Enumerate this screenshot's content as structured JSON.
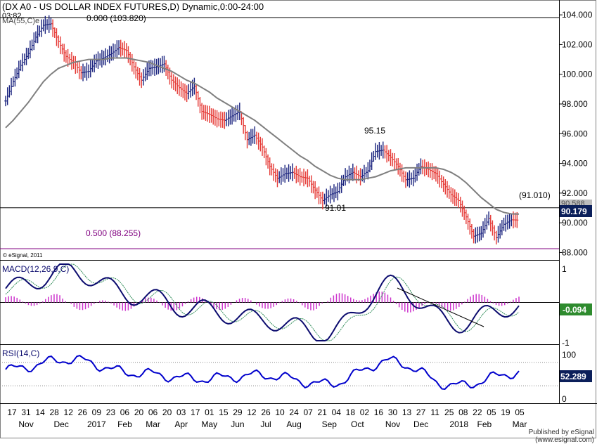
{
  "colors": {
    "up_bar": "#1a237e",
    "down_bar": "#e53935",
    "ma_line": "#7f7f7f",
    "level_line": "#000000",
    "fib_line": "#800080",
    "macd_line": "#0b0b6e",
    "signal_line": "#2e8b57",
    "hist": "#cc33cc",
    "rsi_line": "#0000cc",
    "grid_dot": "#888888",
    "price_box": "#0b1f5a",
    "macd_box": "#2e8b2e",
    "rsi_box": "#0b1f5a"
  },
  "header": {
    "title": "(DX A0 - US DOLLAR INDEX FUTURES,D) Dynamic,0:00-24:00",
    "subtitle_value": "03:82",
    "ma_label": "MA(55,C)e"
  },
  "annotations": {
    "high_label": "0.000 (103.820)",
    "fib_label": "0.500 (88.255)",
    "peak_label": "95.15",
    "low_label": "91.01",
    "level_right_label": "(91.010)",
    "ma_value_label": "90.588",
    "copyright": "© eSignal, 2011"
  },
  "price_axis": {
    "ticks": [
      "104.000",
      "102.000",
      "100.000",
      "98.000",
      "96.000",
      "94.000",
      "92.000",
      "90.000",
      "88.000"
    ],
    "last_price": "90.179"
  },
  "macd_panel": {
    "label": "MACD(12,26,9,C)",
    "ticks": [
      "1",
      "-1"
    ],
    "last_value": "-0.094"
  },
  "rsi_panel": {
    "label": "RSI(14,C)",
    "ticks": [
      "100",
      "52.289",
      "0"
    ],
    "last_value": "52.289"
  },
  "x_axis": {
    "day_ticks": [
      "17",
      "31",
      "14",
      "28",
      "12",
      "26",
      "09",
      "23",
      "06",
      "20",
      "06",
      "20",
      "03",
      "17",
      "01",
      "15",
      "29",
      "12",
      "26",
      "10",
      "24",
      "07",
      "21",
      "04",
      "18",
      "02",
      "16",
      "30",
      "13",
      "27",
      "11",
      "25",
      "08",
      "22",
      "05",
      "19",
      "05"
    ],
    "month_labels": [
      "Nov",
      "Dec",
      "2017",
      "Feb",
      "Mar",
      "Apr",
      "May",
      "Jun",
      "Jul",
      "Aug",
      "Sep",
      "Oct",
      "Nov",
      "Dec",
      "2018",
      "Feb",
      "Mar"
    ]
  },
  "footer": {
    "published": "Published by eSignal (www.esignal.com)"
  },
  "chart_data": [
    {
      "type": "line",
      "title": "(DX A0 - US DOLLAR INDEX FUTURES,D) Dynamic,0:00-24:00",
      "x": [
        "2016-11-17",
        "2016-11-24",
        "2016-12-01",
        "2016-12-08",
        "2016-12-15",
        "2016-12-22",
        "2016-12-29",
        "2017-01-05",
        "2017-01-12",
        "2017-01-19",
        "2017-01-26",
        "2017-02-02",
        "2017-02-09",
        "2017-02-16",
        "2017-02-23",
        "2017-03-02",
        "2017-03-09",
        "2017-03-16",
        "2017-03-23",
        "2017-03-30",
        "2017-04-06",
        "2017-04-13",
        "2017-04-20",
        "2017-04-27",
        "2017-05-04",
        "2017-05-11",
        "2017-05-18",
        "2017-05-25",
        "2017-06-01",
        "2017-06-08",
        "2017-06-15",
        "2017-06-22",
        "2017-06-29",
        "2017-07-06",
        "2017-07-13",
        "2017-07-20",
        "2017-07-27",
        "2017-08-03",
        "2017-08-10",
        "2017-08-17",
        "2017-08-24",
        "2017-08-31",
        "2017-09-07",
        "2017-09-14",
        "2017-09-21",
        "2017-09-28",
        "2017-10-05",
        "2017-10-12",
        "2017-10-19",
        "2017-10-26",
        "2017-11-02",
        "2017-11-09",
        "2017-11-16",
        "2017-11-23",
        "2017-11-30",
        "2017-12-07",
        "2017-12-14",
        "2017-12-21",
        "2017-12-28",
        "2018-01-04",
        "2018-01-11",
        "2018-01-18",
        "2018-01-25",
        "2018-02-01",
        "2018-02-08",
        "2018-02-15",
        "2018-02-22",
        "2018-03-01",
        "2018-03-05"
      ],
      "series": [
        {
          "name": "DX A0",
          "values": [
            98.2,
            99.5,
            100.6,
            101.4,
            102.5,
            103.3,
            103.4,
            102.2,
            101.2,
            100.8,
            100.1,
            100.2,
            100.9,
            101.1,
            101.4,
            101.8,
            101.6,
            100.5,
            99.6,
            100.4,
            100.5,
            100.7,
            99.6,
            99.1,
            98.7,
            99.2,
            97.5,
            97.3,
            97.0,
            96.9,
            97.2,
            97.5,
            95.6,
            95.9,
            95.1,
            93.8,
            93.0,
            93.3,
            93.4,
            93.1,
            93.0,
            92.2,
            91.5,
            91.9,
            92.1,
            93.1,
            93.4,
            93.1,
            93.5,
            94.8,
            94.9,
            94.4,
            93.8,
            92.9,
            93.0,
            93.8,
            93.6,
            93.3,
            92.6,
            91.9,
            91.5,
            90.4,
            89.1,
            89.3,
            90.3,
            89.0,
            89.9,
            90.2,
            90.18
          ]
        },
        {
          "name": "MA(55,C)e",
          "values": [
            96.4,
            96.9,
            97.5,
            98.1,
            98.8,
            99.5,
            100.0,
            100.4,
            100.6,
            100.8,
            100.9,
            101.0,
            101.0,
            101.0,
            101.1,
            101.1,
            101.1,
            101.0,
            100.9,
            100.8,
            100.6,
            100.4,
            100.2,
            99.9,
            99.6,
            99.4,
            99.1,
            98.8,
            98.4,
            98.1,
            97.8,
            97.5,
            97.2,
            96.9,
            96.5,
            96.1,
            95.7,
            95.3,
            94.9,
            94.5,
            94.2,
            93.8,
            93.5,
            93.2,
            93.0,
            92.9,
            92.9,
            92.9,
            93.0,
            93.1,
            93.3,
            93.5,
            93.6,
            93.7,
            93.7,
            93.7,
            93.7,
            93.7,
            93.6,
            93.4,
            93.1,
            92.7,
            92.2,
            91.7,
            91.3,
            90.9,
            90.7,
            90.6,
            90.59
          ]
        }
      ],
      "ylim": [
        87.5,
        105.0
      ],
      "horizontal_levels": [
        103.82,
        91.01,
        88.255
      ],
      "grid": false,
      "legend": "top-left"
    },
    {
      "type": "line",
      "title": "MACD(12,26,9,C)",
      "x": [
        "2016-11-17",
        "2017-01-05",
        "2017-03-02",
        "2017-05-04",
        "2017-07-06",
        "2017-09-07",
        "2017-11-02",
        "2018-01-04",
        "2018-03-05"
      ],
      "series": [
        {
          "name": "MACD",
          "values": [
            0.4,
            0.9,
            0.2,
            -0.2,
            -0.5,
            -0.9,
            0.5,
            -0.6,
            -0.094
          ]
        }
      ],
      "ylim": [
        -1.2,
        1.2
      ],
      "grid": false
    },
    {
      "type": "line",
      "title": "RSI(14,C)",
      "x": [
        "2016-11-17",
        "2017-01-05",
        "2017-03-02",
        "2017-05-04",
        "2017-07-06",
        "2017-09-07",
        "2017-11-02",
        "2018-01-04",
        "2018-03-05"
      ],
      "series": [
        {
          "name": "RSI",
          "values": [
            58,
            75,
            52,
            42,
            48,
            33,
            72,
            30,
            52.289
          ]
        }
      ],
      "ylim": [
        0,
        100
      ],
      "grid": false
    }
  ]
}
